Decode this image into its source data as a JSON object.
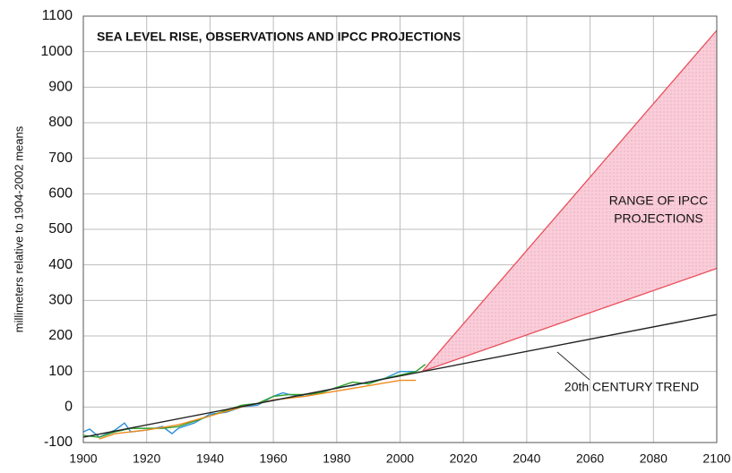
{
  "chart_data": {
    "type": "line",
    "title": "SEA LEVEL RISE, OBSERVATIONS AND IPCC PROJECTIONS",
    "y_label": "millimeters relative to 1904-2002 means",
    "xlim": [
      1900,
      2100
    ],
    "xticks": [
      1900,
      1920,
      1940,
      1960,
      1980,
      2000,
      2020,
      2040,
      2060,
      2080,
      2100
    ],
    "ylim": [
      -100,
      1100
    ],
    "yticks": [
      -100,
      0,
      100,
      200,
      300,
      400,
      500,
      600,
      700,
      800,
      900,
      1000,
      1100
    ],
    "grid": true,
    "series": [
      {
        "color": "#2a8fd8",
        "x": [
          1900,
          1902,
          1905,
          1910,
          1913,
          1915,
          1920,
          1925,
          1928,
          1930,
          1935,
          1940,
          1945,
          1950,
          1955,
          1960,
          1963,
          1965,
          1970,
          1975,
          1980,
          1985,
          1990,
          1995,
          2000,
          2005
        ],
        "values": [
          -70,
          -62,
          -85,
          -65,
          -45,
          -70,
          -65,
          -55,
          -75,
          -60,
          -45,
          -20,
          -15,
          0,
          5,
          30,
          40,
          35,
          30,
          40,
          55,
          60,
          70,
          80,
          100,
          100
        ]
      },
      {
        "color": "#2ca02c",
        "x": [
          1900,
          1905,
          1910,
          1915,
          1920,
          1925,
          1930,
          1935,
          1940,
          1945,
          1950,
          1955,
          1960,
          1965,
          1970,
          1975,
          1980,
          1985,
          1990,
          1995,
          2000,
          2005,
          2008
        ],
        "values": [
          -80,
          -85,
          -70,
          -60,
          -60,
          -60,
          -55,
          -40,
          -25,
          -10,
          5,
          10,
          30,
          35,
          35,
          40,
          55,
          70,
          65,
          80,
          90,
          100,
          120
        ]
      },
      {
        "color": "#f08a1c",
        "x": [
          1905,
          1910,
          1920,
          1930,
          1940,
          1950,
          1960,
          1970,
          1980,
          1990,
          2000,
          2005
        ],
        "values": [
          -90,
          -75,
          -65,
          -50,
          -25,
          0,
          20,
          30,
          45,
          60,
          75,
          75
        ]
      },
      {
        "color": "#222222",
        "x": [
          1900,
          2100
        ],
        "values": [
          -85,
          260
        ]
      }
    ],
    "range": {
      "color": "#e8505b",
      "fill": "#f9cdd9",
      "x": [
        2007,
        2100
      ],
      "lower": [
        100,
        390
      ],
      "upper": [
        100,
        1060
      ]
    },
    "annotations": [
      "RANGE OF IPCC",
      "PROJECTIONS",
      "20th CENTURY TREND"
    ]
  }
}
